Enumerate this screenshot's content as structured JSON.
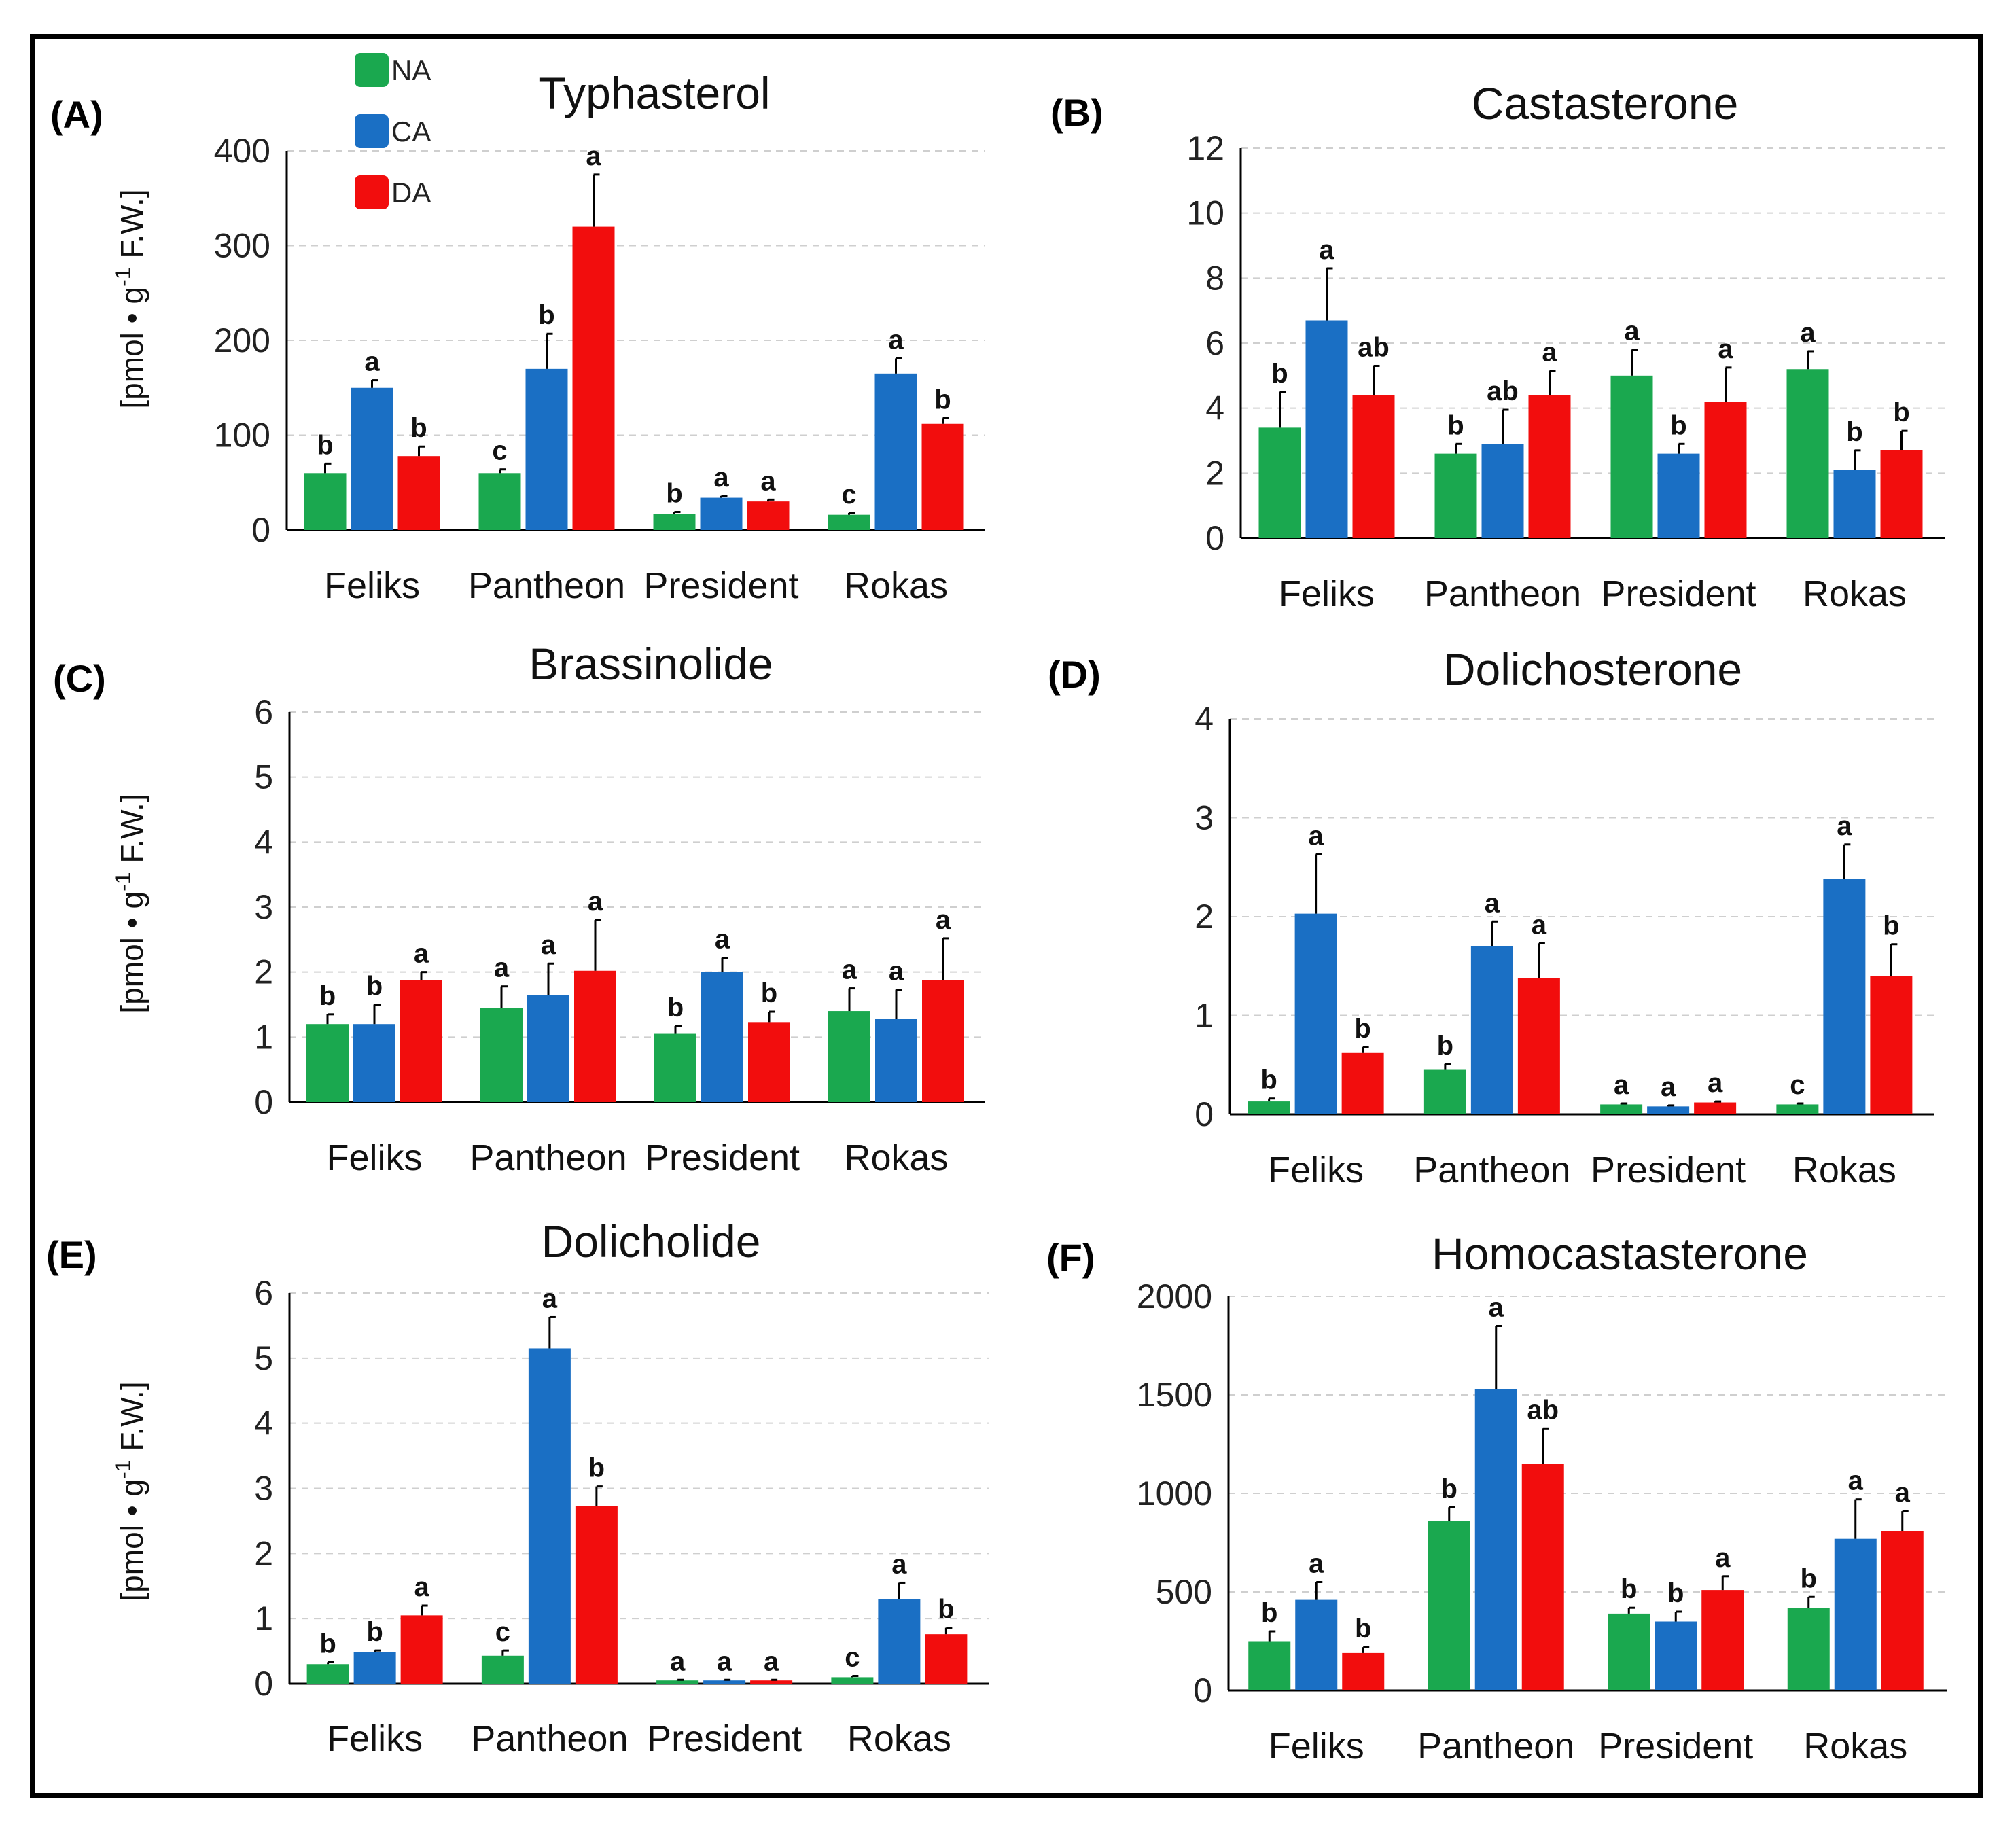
{
  "colors": {
    "NA": "#1aa84f",
    "CA": "#1a6fc4",
    "DA": "#f20d0d",
    "axis": "#000000",
    "grid": "#cfcfcf",
    "error": "#000000"
  },
  "legend": [
    {
      "name": "NA",
      "color": "#1aa84f"
    },
    {
      "name": "CA",
      "color": "#1a6fc4"
    },
    {
      "name": "DA",
      "color": "#f20d0d"
    }
  ],
  "ylabel": {
    "main": "[pmol • g",
    "sup": "-1",
    "tail": " F.W.]"
  },
  "chart_data": [
    {
      "panel": "(A)",
      "type": "bar",
      "title": "Typhasterol",
      "categories": [
        "Feliks",
        "Pantheon",
        "President",
        "Rokas"
      ],
      "ylim": [
        0,
        400
      ],
      "yticks": [
        "0",
        "100",
        "200",
        "300",
        "400"
      ],
      "grid": true,
      "series": [
        {
          "name": "NA",
          "values": [
            60,
            60,
            17,
            16
          ],
          "errors": [
            10,
            4,
            2,
            2
          ],
          "letters": [
            "b",
            "c",
            "b",
            "c"
          ]
        },
        {
          "name": "CA",
          "values": [
            150,
            170,
            34,
            165
          ],
          "errors": [
            8,
            37,
            2,
            16
          ],
          "letters": [
            "a",
            "b",
            "a",
            "a"
          ]
        },
        {
          "name": "DA",
          "values": [
            78,
            320,
            30,
            112
          ],
          "errors": [
            10,
            55,
            2,
            6
          ],
          "letters": [
            "b",
            "a",
            "a",
            "b"
          ]
        }
      ]
    },
    {
      "panel": "(B)",
      "type": "bar",
      "title": "Castasterone",
      "categories": [
        "Feliks",
        "Pantheon",
        "President",
        "Rokas"
      ],
      "ylim": [
        0,
        12
      ],
      "yticks": [
        "0",
        "2",
        "4",
        "6",
        "8",
        "10",
        "12"
      ],
      "grid": true,
      "series": [
        {
          "name": "NA",
          "values": [
            3.4,
            2.6,
            5.0,
            5.2
          ],
          "errors": [
            1.1,
            0.3,
            0.8,
            0.55
          ],
          "letters": [
            "b",
            "b",
            "a",
            "a"
          ]
        },
        {
          "name": "CA",
          "values": [
            6.7,
            2.9,
            2.6,
            2.1
          ],
          "errors": [
            1.6,
            1.05,
            0.3,
            0.6
          ],
          "letters": [
            "a",
            "ab",
            "b",
            "b"
          ]
        },
        {
          "name": "DA",
          "values": [
            4.4,
            4.4,
            4.2,
            2.7
          ],
          "errors": [
            0.9,
            0.75,
            1.05,
            0.6
          ],
          "letters": [
            "ab",
            "a",
            "a",
            "b"
          ]
        }
      ]
    },
    {
      "panel": "(C)",
      "type": "bar",
      "title": "Brassinolide",
      "categories": [
        "Feliks",
        "Pantheon",
        "President",
        "Rokas"
      ],
      "ylim": [
        0,
        6
      ],
      "yticks": [
        "0",
        "1",
        "2",
        "3",
        "4",
        "5",
        "6"
      ],
      "grid": true,
      "series": [
        {
          "name": "NA",
          "values": [
            1.2,
            1.45,
            1.05,
            1.4
          ],
          "errors": [
            0.15,
            0.33,
            0.12,
            0.35
          ],
          "letters": [
            "b",
            "a",
            "b",
            "a"
          ]
        },
        {
          "name": "CA",
          "values": [
            1.2,
            1.65,
            2.0,
            1.28
          ],
          "errors": [
            0.3,
            0.48,
            0.22,
            0.45
          ],
          "letters": [
            "b",
            "a",
            "a",
            "a"
          ]
        },
        {
          "name": "DA",
          "values": [
            1.88,
            2.02,
            1.23,
            1.88
          ],
          "errors": [
            0.12,
            0.78,
            0.16,
            0.64
          ],
          "letters": [
            "a",
            "a",
            "b",
            "a"
          ]
        }
      ]
    },
    {
      "panel": "(D)",
      "type": "bar",
      "title": "Dolichosterone",
      "categories": [
        "Feliks",
        "Pantheon",
        "President",
        "Rokas"
      ],
      "ylim": [
        0,
        4
      ],
      "yticks": [
        "0",
        "1",
        "2",
        "3",
        "4"
      ],
      "grid": true,
      "series": [
        {
          "name": "NA",
          "values": [
            0.13,
            0.45,
            0.1,
            0.1
          ],
          "errors": [
            0.03,
            0.06,
            0.01,
            0.01
          ],
          "letters": [
            "b",
            "b",
            "a",
            "c"
          ]
        },
        {
          "name": "CA",
          "values": [
            2.03,
            1.7,
            0.08,
            2.38
          ],
          "errors": [
            0.6,
            0.25,
            0.01,
            0.35
          ],
          "letters": [
            "a",
            "a",
            "a",
            "a"
          ]
        },
        {
          "name": "DA",
          "values": [
            0.62,
            1.38,
            0.12,
            1.4
          ],
          "errors": [
            0.06,
            0.35,
            0.01,
            0.32
          ],
          "letters": [
            "b",
            "a",
            "a",
            "b"
          ]
        }
      ]
    },
    {
      "panel": "(E)",
      "type": "bar",
      "title": "Dolicholide",
      "categories": [
        "Feliks",
        "Pantheon",
        "President",
        "Rokas"
      ],
      "ylim": [
        0,
        6
      ],
      "yticks": [
        "0",
        "1",
        "2",
        "3",
        "4",
        "5",
        "6"
      ],
      "grid": true,
      "series": [
        {
          "name": "NA",
          "values": [
            0.3,
            0.43,
            0.05,
            0.1
          ],
          "errors": [
            0.03,
            0.08,
            0.01,
            0.02
          ],
          "letters": [
            "b",
            "c",
            "a",
            "c"
          ]
        },
        {
          "name": "CA",
          "values": [
            0.48,
            5.15,
            0.05,
            1.3
          ],
          "errors": [
            0.03,
            0.48,
            0.01,
            0.25
          ],
          "letters": [
            "b",
            "a",
            "a",
            "a"
          ]
        },
        {
          "name": "DA",
          "values": [
            1.05,
            2.73,
            0.05,
            0.76
          ],
          "errors": [
            0.15,
            0.3,
            0.01,
            0.1
          ],
          "letters": [
            "a",
            "b",
            "a",
            "b"
          ]
        }
      ]
    },
    {
      "panel": "(F)",
      "type": "bar",
      "title": "Homocastasterone",
      "categories": [
        "Feliks",
        "Pantheon",
        "President",
        "Rokas"
      ],
      "ylim": [
        0,
        2000
      ],
      "yticks": [
        "0",
        "500",
        "1000",
        "1500",
        "2000"
      ],
      "grid": true,
      "series": [
        {
          "name": "NA",
          "values": [
            250,
            860,
            390,
            420
          ],
          "errors": [
            50,
            70,
            30,
            55
          ],
          "letters": [
            "b",
            "b",
            "b",
            "b"
          ]
        },
        {
          "name": "CA",
          "values": [
            460,
            1530,
            350,
            770
          ],
          "errors": [
            90,
            320,
            50,
            200
          ],
          "letters": [
            "a",
            "a",
            "b",
            "a"
          ]
        },
        {
          "name": "DA",
          "values": [
            190,
            1150,
            510,
            810
          ],
          "errors": [
            30,
            180,
            70,
            100
          ],
          "letters": [
            "b",
            "ab",
            "a",
            "a"
          ]
        }
      ]
    }
  ]
}
